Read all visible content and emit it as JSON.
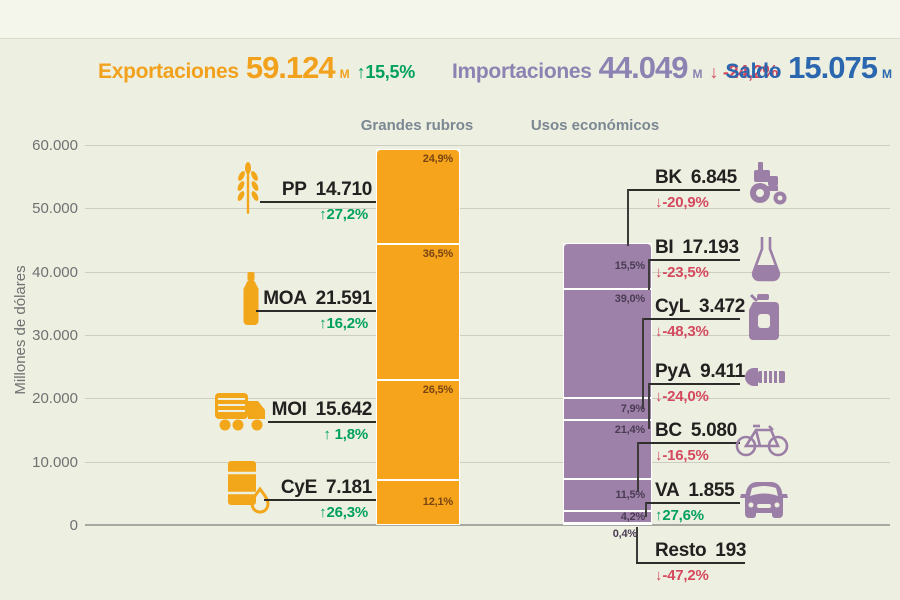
{
  "header": {
    "exports": {
      "label": "Exportaciones",
      "value": "59.124",
      "unit": "M",
      "arrow": "↑",
      "change": "15,5%"
    },
    "imports": {
      "label": "Importaciones",
      "value": "44.049",
      "unit": "M",
      "arrow": "↓",
      "change": "-24,2%"
    },
    "balance": {
      "label": "Saldo",
      "value": "15.075",
      "unit": "M"
    }
  },
  "columns": {
    "exports_header": "Grandes rubros",
    "imports_header": "Usos económicos"
  },
  "axis": {
    "title": "Millones de dólares",
    "ticks": [
      "60.000",
      "50.000",
      "40.000",
      "30.000",
      "20.000",
      "10.000",
      "0"
    ]
  },
  "exports": {
    "items": [
      {
        "code": "PP",
        "value": "14.710",
        "arrow": "↑",
        "change": "27,2%",
        "pct": "24,9%",
        "icon": "wheat-icon"
      },
      {
        "code": "MOA",
        "value": "21.591",
        "arrow": "↑",
        "change": "16,2%",
        "pct": "36,5%",
        "icon": "bottle-icon"
      },
      {
        "code": "MOI",
        "value": "15.642",
        "arrow": "↑",
        "change": "1,8%",
        "pct": "26,5%",
        "icon": "truck-icon"
      },
      {
        "code": "CyE",
        "value": "7.181",
        "arrow": "↑",
        "change": "26,3%",
        "pct": "12,1%",
        "icon": "oil-barrel-icon"
      }
    ]
  },
  "imports": {
    "items": [
      {
        "code": "BK",
        "value": "6.845",
        "arrow": "↓",
        "change": "-20,9%",
        "pct": "15,5%",
        "icon": "tractor-icon"
      },
      {
        "code": "BI",
        "value": "17.193",
        "arrow": "↓",
        "change": "-23,5%",
        "pct": "39,0%",
        "icon": "flask-icon"
      },
      {
        "code": "CyL",
        "value": "3.472",
        "arrow": "↓",
        "change": "-48,3%",
        "pct": "7,9%",
        "icon": "fuel-can-icon"
      },
      {
        "code": "PyA",
        "value": "9.411",
        "arrow": "↓",
        "change": "-24,0%",
        "pct": "21,4%",
        "icon": "screw-icon"
      },
      {
        "code": "BC",
        "value": "5.080",
        "arrow": "↓",
        "change": "-16,5%",
        "pct": "11,5%",
        "icon": "bicycle-icon"
      },
      {
        "code": "VA",
        "value": "1.855",
        "arrow": "↑",
        "change": "27,6%",
        "pct": "4,2%",
        "icon": "car-icon"
      },
      {
        "code": "Resto",
        "value": "193",
        "arrow": "↓",
        "change": "-47,2%",
        "pct": "0,4%",
        "icon": ""
      }
    ]
  },
  "colors": {
    "exports_bar": "#f5a41c",
    "imports_bar": "#9e81a8",
    "exports_pct_text": "#7a4512",
    "imports_pct_text": "#4a3c55",
    "up_green": "#00a15d",
    "down_red": "#d4495e",
    "balance_blue": "#2b67ae",
    "imports_header_purple": "#8d83b3",
    "exports_header_orange": "#f2a11d"
  },
  "chart_data": [
    {
      "type": "bar",
      "title": "Grandes rubros",
      "series_name": "Exportaciones",
      "total": 59124,
      "categories": [
        "PP",
        "MOA",
        "MOI",
        "CyE"
      ],
      "values": [
        14710,
        21591,
        15642,
        7181
      ],
      "percent": [
        24.9,
        36.5,
        26.5,
        12.1
      ],
      "percent_labels": [
        "24,9%",
        "36,5%",
        "26,5%",
        "12,1%"
      ],
      "yoy_change_pct": [
        27.2,
        16.2,
        1.8,
        26.3
      ],
      "xlabel": "",
      "ylabel": "Millones de dólares",
      "ylim": [
        0,
        60000
      ],
      "grid": true
    },
    {
      "type": "bar",
      "title": "Usos económicos",
      "series_name": "Importaciones",
      "total": 44049,
      "categories": [
        "BK",
        "BI",
        "CyL",
        "PyA",
        "BC",
        "VA",
        "Resto"
      ],
      "values": [
        6845,
        17193,
        3472,
        9411,
        5080,
        1855,
        193
      ],
      "percent": [
        15.5,
        39.0,
        7.9,
        21.4,
        11.5,
        4.2,
        0.4
      ],
      "percent_labels": [
        "15,5%",
        "39,0%",
        "7,9%",
        "21,4%",
        "11,5%",
        "4,2%",
        "0,4%"
      ],
      "yoy_change_pct": [
        -20.9,
        -23.5,
        -48.3,
        -24.0,
        -16.5,
        27.6,
        -47.2
      ],
      "xlabel": "",
      "ylabel": "Millones de dólares",
      "ylim": [
        0,
        60000
      ],
      "grid": true
    }
  ]
}
